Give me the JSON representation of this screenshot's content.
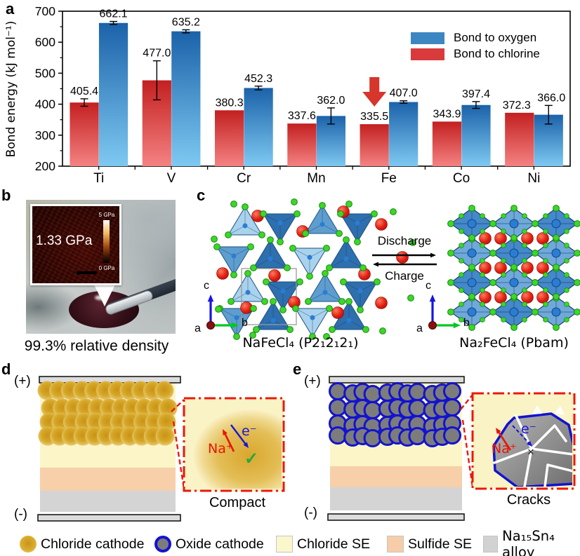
{
  "figure": {
    "panels": {
      "a": "a",
      "b": "b",
      "c": "c",
      "d": "d",
      "e": "e"
    }
  },
  "chart_data": {
    "type": "bar",
    "title": "",
    "xlabel": "",
    "ylabel": "Bond energy (kJ mol⁻¹)",
    "ylim": [
      200,
      700
    ],
    "yticks": [
      200,
      300,
      400,
      500,
      600,
      700
    ],
    "categories": [
      "Ti",
      "V",
      "Cr",
      "Mn",
      "Fe",
      "Co",
      "Ni"
    ],
    "series": [
      {
        "name": "Bond to chlorine",
        "values": [
          405.4,
          477.0,
          380.3,
          337.6,
          335.5,
          343.9,
          372.3
        ],
        "errors": [
          12,
          63,
          0,
          0,
          0,
          0,
          0
        ],
        "color_top": "#c32020",
        "color_bottom": "#f58282"
      },
      {
        "name": "Bond to oxygen",
        "values": [
          662.1,
          635.2,
          452.3,
          362.0,
          407.0,
          397.4,
          366.0
        ],
        "errors": [
          5,
          5,
          6,
          26,
          4,
          11,
          30
        ],
        "color_top": "#1b62a9",
        "color_bottom": "#7ec9f2"
      }
    ],
    "legend_position": "top-right",
    "grid": false,
    "annotation": {
      "type": "arrow-down",
      "category": "Fe",
      "color": "#d6362b"
    }
  },
  "panel_a": {
    "legend": [
      {
        "label": "Bond to oxygen",
        "color": "#3c87c1"
      },
      {
        "label": "Bond to chlorine",
        "color": "#d93a3c"
      }
    ]
  },
  "panel_b": {
    "afm_value": "1.33 GPa",
    "scale_max": "5 GPa",
    "scale_min": "0 GPa",
    "caption": "99.3% relative density"
  },
  "panel_c": {
    "discharge_label": "Discharge",
    "charge_label": "Charge",
    "left_formula": "NaFeCl₄ (P2₁2₁2₁)",
    "right_formula": "Na₂FeCl₄ (Pbam)",
    "axis_a": "a",
    "axis_b": "b",
    "axis_c": "c"
  },
  "panel_d": {
    "positive": "(+)",
    "negative": "(-)",
    "na_label": "Na⁺",
    "electron_label": "e⁻",
    "check": "✓",
    "inset_caption": "Compact"
  },
  "panel_e": {
    "positive": "(+)",
    "negative": "(-)",
    "na_label": "Na⁺",
    "electron_label": "e⁻",
    "cross": "×",
    "inset_caption": "Cracks"
  },
  "bottom_legend": {
    "items": [
      {
        "label": "Chloride cathode"
      },
      {
        "label": "Oxide cathode"
      },
      {
        "label": "Chloride SE",
        "color": "#fbf7cd"
      },
      {
        "label": "Sulfide SE",
        "color": "#f6cda8"
      },
      {
        "label": "Na₁₅Sn₄ alloy",
        "color": "#d2d2d2"
      }
    ]
  },
  "colors": {
    "chloride_se": "#fbf5c8",
    "sulfide_se": "#f7cfa9",
    "alloy": "#d4d4d4",
    "oxide_cathode_fill": "#7c7c7c",
    "oxide_cathode_ring": "#1313cf",
    "inset_border": "#ec1808",
    "na_arrow": "#e81505",
    "electron_arrow": "#1515d8",
    "check_green": "#1faa3c"
  }
}
